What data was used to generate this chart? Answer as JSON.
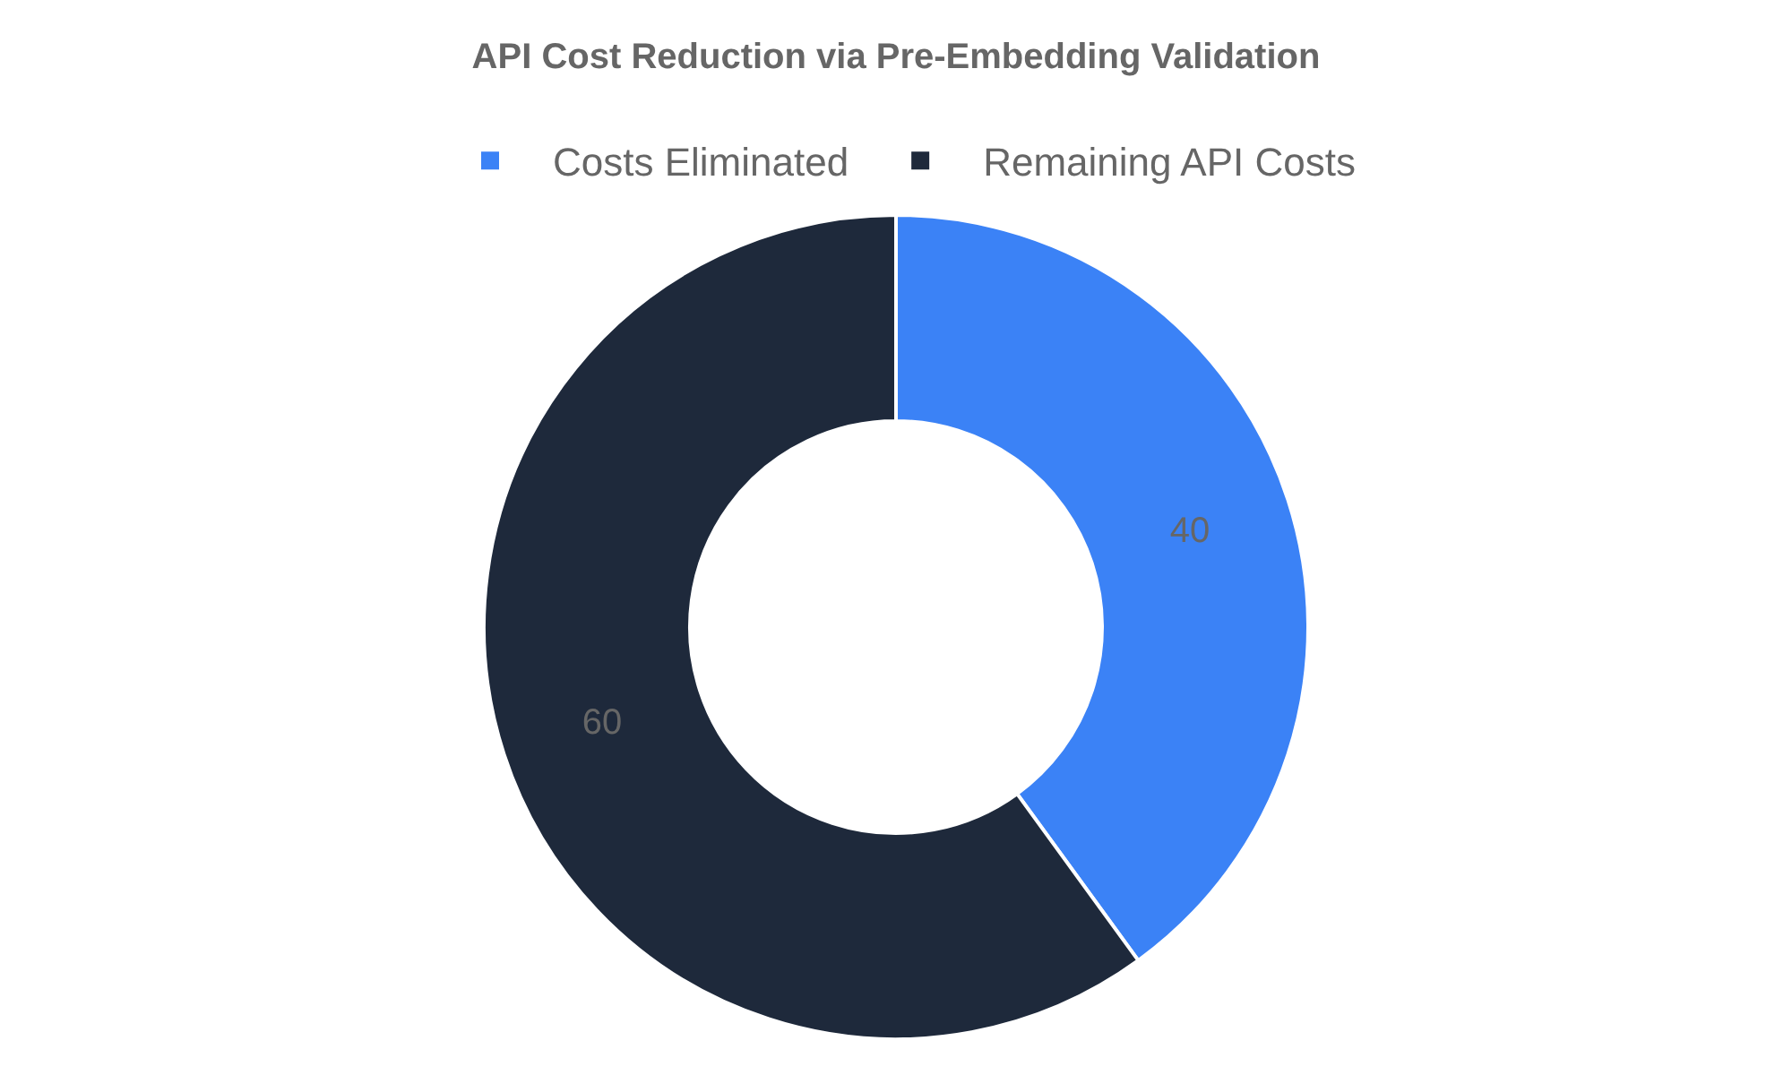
{
  "chart_data": {
    "type": "donut",
    "title": "API Cost Reduction via Pre-Embedding Validation",
    "categories": [
      "Costs Eliminated",
      "Remaining API Costs"
    ],
    "values": [
      40,
      60
    ],
    "colors": [
      "#3b82f6",
      "#1e293b"
    ],
    "data_labels": true,
    "legend": "top"
  }
}
